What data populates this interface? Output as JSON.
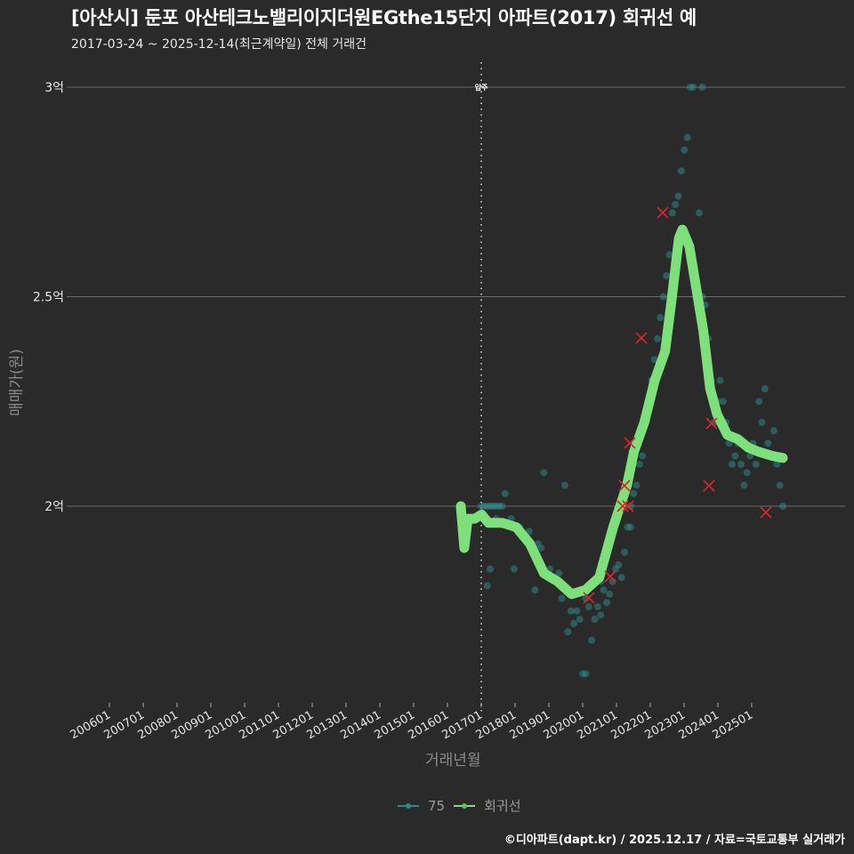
{
  "header": {
    "title": "[아산시] 둔포 아산테크노밸리이지더원EGthe15단지 아파트(2017) 회귀선 예",
    "subtitle": "2017-03-24 ~ 2025-12-14(최근계약일) 전체 거래건"
  },
  "axes": {
    "ylabel": "매매가(원)",
    "xlabel": "거래년월",
    "yticks": [
      {
        "label": "3억",
        "value": 3.0
      },
      {
        "label": "2.5억",
        "value": 2.5
      },
      {
        "label": "2억",
        "value": 2.0
      }
    ],
    "xticks": [
      "200601",
      "200701",
      "200801",
      "200901",
      "201001",
      "201101",
      "201201",
      "201301",
      "201401",
      "201501",
      "201601",
      "201701",
      "201801",
      "201901",
      "202001",
      "202101",
      "202201",
      "202301",
      "202401",
      "202501"
    ]
  },
  "annotation": {
    "label": "입주",
    "x": "2017-01"
  },
  "legend": {
    "items": [
      {
        "label": "75",
        "color": "#2a8a8a"
      },
      {
        "label": "회귀선",
        "color": "#7de07a"
      }
    ]
  },
  "caption": "©디아파트(dapt.kr) / 2025.12.17 / 자료=국토교통부 실거래가",
  "colors": {
    "background": "#2a2a2b",
    "grid": "#6b6b6b",
    "scatter": "#2e9a96",
    "regression": "#7de07a",
    "outlier": "#d8262b"
  },
  "chart_data": {
    "type": "scatter",
    "title": "[아산시] 둔포 아산테크노밸리이지더원EGthe15단지 아파트(2017) 회귀선 예",
    "subtitle": "2017-03-24 ~ 2025-12-14(최근계약일) 전체 거래건",
    "xlabel": "거래년월",
    "ylabel": "매매가(원)",
    "ylim": [
      1.55,
      3.05
    ],
    "y_unit": "억",
    "xlim": [
      "2005-01",
      "2025-12"
    ],
    "grid": true,
    "legend_position": "bottom",
    "series": [
      {
        "name": "75",
        "type": "scatter",
        "points": [
          [
            2017.0,
            2.0
          ],
          [
            2017.1,
            2.0
          ],
          [
            2017.2,
            2.0
          ],
          [
            2017.3,
            2.0
          ],
          [
            2017.4,
            2.0
          ],
          [
            2017.5,
            2.0
          ],
          [
            2017.6,
            2.0
          ],
          [
            2017.7,
            2.0
          ],
          [
            2017.2,
            1.81
          ],
          [
            2017.3,
            1.85
          ],
          [
            2017.5,
            1.97
          ],
          [
            2017.8,
            2.03
          ],
          [
            2017.9,
            1.96
          ],
          [
            2018.0,
            1.97
          ],
          [
            2018.1,
            1.85
          ],
          [
            2018.3,
            1.95
          ],
          [
            2018.5,
            1.92
          ],
          [
            2018.6,
            1.94
          ],
          [
            2018.8,
            1.8
          ],
          [
            2018.9,
            1.91
          ],
          [
            2019.0,
            1.9
          ],
          [
            2019.1,
            2.08
          ],
          [
            2019.3,
            1.85
          ],
          [
            2019.5,
            1.82
          ],
          [
            2019.6,
            1.84
          ],
          [
            2019.7,
            1.78
          ],
          [
            2019.8,
            2.05
          ],
          [
            2019.9,
            1.7
          ],
          [
            2020.0,
            1.75
          ],
          [
            2020.1,
            1.72
          ],
          [
            2020.2,
            1.75
          ],
          [
            2020.3,
            1.73
          ],
          [
            2020.4,
            1.6
          ],
          [
            2020.5,
            1.6
          ],
          [
            2020.5,
            1.78
          ],
          [
            2020.6,
            1.76
          ],
          [
            2020.7,
            1.68
          ],
          [
            2020.8,
            1.73
          ],
          [
            2020.9,
            1.76
          ],
          [
            2021.0,
            1.74
          ],
          [
            2021.0,
            1.82
          ],
          [
            2021.1,
            1.8
          ],
          [
            2021.2,
            1.77
          ],
          [
            2021.3,
            1.79
          ],
          [
            2021.4,
            1.82
          ],
          [
            2021.5,
            1.85
          ],
          [
            2021.6,
            1.86
          ],
          [
            2021.7,
            1.83
          ],
          [
            2021.8,
            1.89
          ],
          [
            2021.9,
            1.95
          ],
          [
            2022.0,
            1.95
          ],
          [
            2022.0,
            2.0
          ],
          [
            2022.1,
            2.03
          ],
          [
            2022.2,
            2.05
          ],
          [
            2022.3,
            2.1
          ],
          [
            2022.4,
            2.12
          ],
          [
            2022.5,
            2.2
          ],
          [
            2022.6,
            2.25
          ],
          [
            2022.7,
            2.3
          ],
          [
            2022.8,
            2.35
          ],
          [
            2022.9,
            2.4
          ],
          [
            2023.0,
            2.45
          ],
          [
            2023.1,
            2.5
          ],
          [
            2023.2,
            2.55
          ],
          [
            2023.3,
            2.6
          ],
          [
            2023.4,
            2.7
          ],
          [
            2023.5,
            2.72
          ],
          [
            2023.6,
            2.74
          ],
          [
            2023.7,
            2.8
          ],
          [
            2023.8,
            2.85
          ],
          [
            2023.9,
            2.88
          ],
          [
            2024.0,
            3.0
          ],
          [
            2024.1,
            3.0
          ],
          [
            2024.4,
            3.0
          ],
          [
            2024.3,
            2.7
          ],
          [
            2024.4,
            2.5
          ],
          [
            2024.5,
            2.48
          ],
          [
            2024.6,
            2.4
          ],
          [
            2024.7,
            2.3
          ],
          [
            2024.8,
            2.2
          ],
          [
            2024.9,
            2.25
          ],
          [
            2025.0,
            2.3
          ],
          [
            2025.1,
            2.25
          ],
          [
            2025.2,
            2.2
          ],
          [
            2025.3,
            2.15
          ],
          [
            2025.4,
            2.1
          ],
          [
            2025.5,
            2.12
          ],
          [
            2025.6,
            2.15
          ],
          [
            2025.7,
            2.1
          ],
          [
            2025.8,
            2.05
          ],
          [
            2025.9,
            2.08
          ],
          [
            2026.0,
            2.12
          ],
          [
            2026.1,
            2.15
          ],
          [
            2026.2,
            2.1
          ],
          [
            2026.3,
            2.25
          ],
          [
            2026.4,
            2.2
          ],
          [
            2026.5,
            2.28
          ],
          [
            2026.6,
            2.15
          ],
          [
            2026.7,
            2.12
          ],
          [
            2026.8,
            2.18
          ],
          [
            2026.9,
            2.1
          ],
          [
            2027.0,
            2.05
          ],
          [
            2027.1,
            2.0
          ]
        ]
      },
      {
        "name": "회귀선",
        "type": "line",
        "points": [
          [
            2016.6,
            2.0
          ],
          [
            2016.7,
            1.9
          ],
          [
            2016.8,
            1.97
          ],
          [
            2017.0,
            1.97
          ],
          [
            2017.2,
            1.98
          ],
          [
            2017.4,
            1.96
          ],
          [
            2017.8,
            1.96
          ],
          [
            2018.2,
            1.95
          ],
          [
            2018.6,
            1.91
          ],
          [
            2019.0,
            1.84
          ],
          [
            2019.4,
            1.82
          ],
          [
            2019.8,
            1.79
          ],
          [
            2020.2,
            1.8
          ],
          [
            2020.6,
            1.83
          ],
          [
            2021.0,
            1.95
          ],
          [
            2021.4,
            2.05
          ],
          [
            2021.6,
            2.13
          ],
          [
            2021.9,
            2.2
          ],
          [
            2022.2,
            2.3
          ],
          [
            2022.5,
            2.37
          ],
          [
            2022.7,
            2.5
          ],
          [
            2022.9,
            2.64
          ],
          [
            2023.0,
            2.66
          ],
          [
            2023.2,
            2.62
          ],
          [
            2023.4,
            2.52
          ],
          [
            2023.6,
            2.42
          ],
          [
            2023.8,
            2.28
          ],
          [
            2024.0,
            2.22
          ],
          [
            2024.3,
            2.17
          ],
          [
            2024.6,
            2.16
          ],
          [
            2024.9,
            2.14
          ],
          [
            2025.2,
            2.13
          ],
          [
            2025.6,
            2.12
          ],
          [
            2025.9,
            2.115
          ]
        ]
      },
      {
        "name": "outliers",
        "type": "scatter",
        "marker": "x",
        "points": [
          [
            2020.4,
            1.79
          ],
          [
            2020.7,
            1.83
          ],
          [
            2021.1,
            2.0
          ],
          [
            2021.2,
            2.0
          ],
          [
            2021.3,
            2.05
          ],
          [
            2021.4,
            2.15
          ],
          [
            2021.7,
            2.4
          ],
          [
            2022.3,
            2.7
          ],
          [
            2023.9,
            2.2
          ],
          [
            2023.8,
            2.05
          ],
          [
            2025.2,
            1.99
          ]
        ]
      }
    ]
  }
}
